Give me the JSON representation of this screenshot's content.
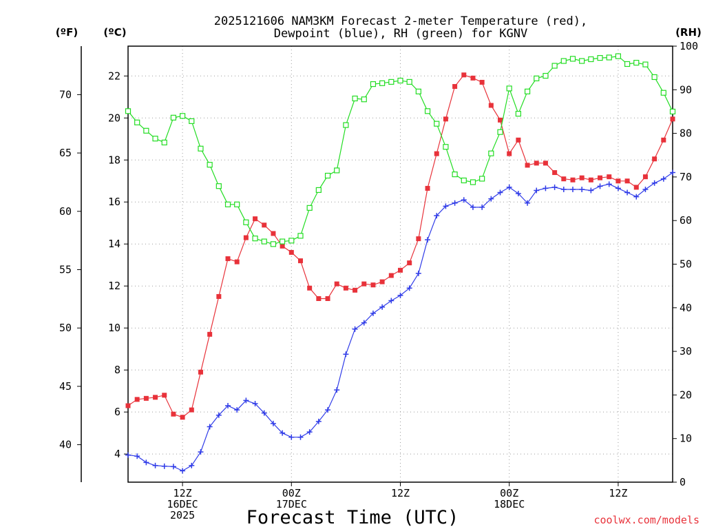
{
  "chart_data": {
    "type": "line",
    "title_line1": "2025121606 NAM3KM Forecast 2-meter Temperature (red),",
    "title_line2": "Dewpoint (blue), RH (green) for KGNV",
    "xlabel": "Forecast Time (UTC)",
    "credit": "coolwx.com/models",
    "left_axis_f_label": "(ºF)",
    "left_axis_c_label": "(ºC)",
    "right_axis_label": "(RH)",
    "ylim_c": [
      2.66,
      23.42
    ],
    "ylim_rh": [
      0,
      100
    ],
    "y_ticks_c": [
      "4",
      "6",
      "8",
      "10",
      "12",
      "14",
      "16",
      "18",
      "20",
      "22"
    ],
    "y_ticks_f": [
      "40",
      "45",
      "50",
      "55",
      "60",
      "65",
      "70"
    ],
    "y_ticks_rh": [
      "0",
      "10",
      "20",
      "30",
      "40",
      "50",
      "60",
      "70",
      "80",
      "90",
      "100"
    ],
    "x_forecast_hours": [
      0,
      60
    ],
    "x_ticks": [
      {
        "hour": 6,
        "lines": [
          "12Z",
          "16DEC",
          "2025"
        ]
      },
      {
        "hour": 18,
        "lines": [
          "00Z",
          "17DEC"
        ]
      },
      {
        "hour": 30,
        "lines": [
          "12Z"
        ]
      },
      {
        "hour": 42,
        "lines": [
          "00Z",
          "18DEC"
        ]
      },
      {
        "hour": 54,
        "lines": [
          "12Z"
        ]
      }
    ],
    "series": [
      {
        "name": "Temperature",
        "unit": "°C",
        "color": "#e8323a",
        "marker": "filled-square",
        "values": [
          6.3,
          6.6,
          6.65,
          6.7,
          6.8,
          5.9,
          5.75,
          6.1,
          7.9,
          9.7,
          11.5,
          13.3,
          13.15,
          14.3,
          15.2,
          14.9,
          14.5,
          13.9,
          13.6,
          13.2,
          11.9,
          11.4,
          11.4,
          12.1,
          11.9,
          11.8,
          12.1,
          12.05,
          12.2,
          12.5,
          12.75,
          13.1,
          14.25,
          16.65,
          18.3,
          19.95,
          21.5,
          22.05,
          21.9,
          21.7,
          20.6,
          19.9,
          18.3,
          18.95,
          17.75,
          17.85,
          17.85,
          17.4,
          17.1,
          17.05,
          17.15,
          17.05,
          17.15,
          17.2,
          17.0,
          17.0,
          16.7,
          17.2,
          18.05,
          18.95,
          19.95
        ]
      },
      {
        "name": "Dewpoint",
        "unit": "°C",
        "color": "#2f3be8",
        "marker": "plus",
        "values": [
          3.95,
          3.9,
          3.6,
          3.45,
          3.42,
          3.4,
          3.2,
          3.45,
          4.1,
          5.3,
          5.85,
          6.3,
          6.1,
          6.55,
          6.4,
          5.95,
          5.45,
          5.0,
          4.8,
          4.8,
          5.05,
          5.55,
          6.1,
          7.05,
          8.75,
          9.95,
          10.25,
          10.7,
          11.0,
          11.3,
          11.55,
          11.9,
          12.6,
          14.2,
          15.35,
          15.8,
          15.95,
          16.1,
          15.75,
          15.75,
          16.15,
          16.45,
          16.7,
          16.4,
          15.95,
          16.55,
          16.65,
          16.7,
          16.6,
          16.6,
          16.6,
          16.55,
          16.75,
          16.85,
          16.65,
          16.45,
          16.25,
          16.6,
          16.9,
          17.1,
          17.4
        ]
      },
      {
        "name": "RH",
        "unit": "%",
        "color": "#22dd22",
        "marker": "open-square",
        "values": [
          85.1,
          82.5,
          80.6,
          78.8,
          77.9,
          83.6,
          84.0,
          82.8,
          76.5,
          72.8,
          67.9,
          63.7,
          63.7,
          59.6,
          55.9,
          55.2,
          54.6,
          55.2,
          55.4,
          56.5,
          62.9,
          67.0,
          70.3,
          71.5,
          81.9,
          88.0,
          87.8,
          91.3,
          91.5,
          91.8,
          92.1,
          91.8,
          89.6,
          85.1,
          82.2,
          76.9,
          70.6,
          69.2,
          68.8,
          69.6,
          75.4,
          80.3,
          90.3,
          84.5,
          89.6,
          92.6,
          93.2,
          95.5,
          96.6,
          97.1,
          96.6,
          97.0,
          97.3,
          97.4,
          97.7,
          95.9,
          96.2,
          95.8,
          92.9,
          89.3,
          85.0
        ]
      }
    ]
  }
}
